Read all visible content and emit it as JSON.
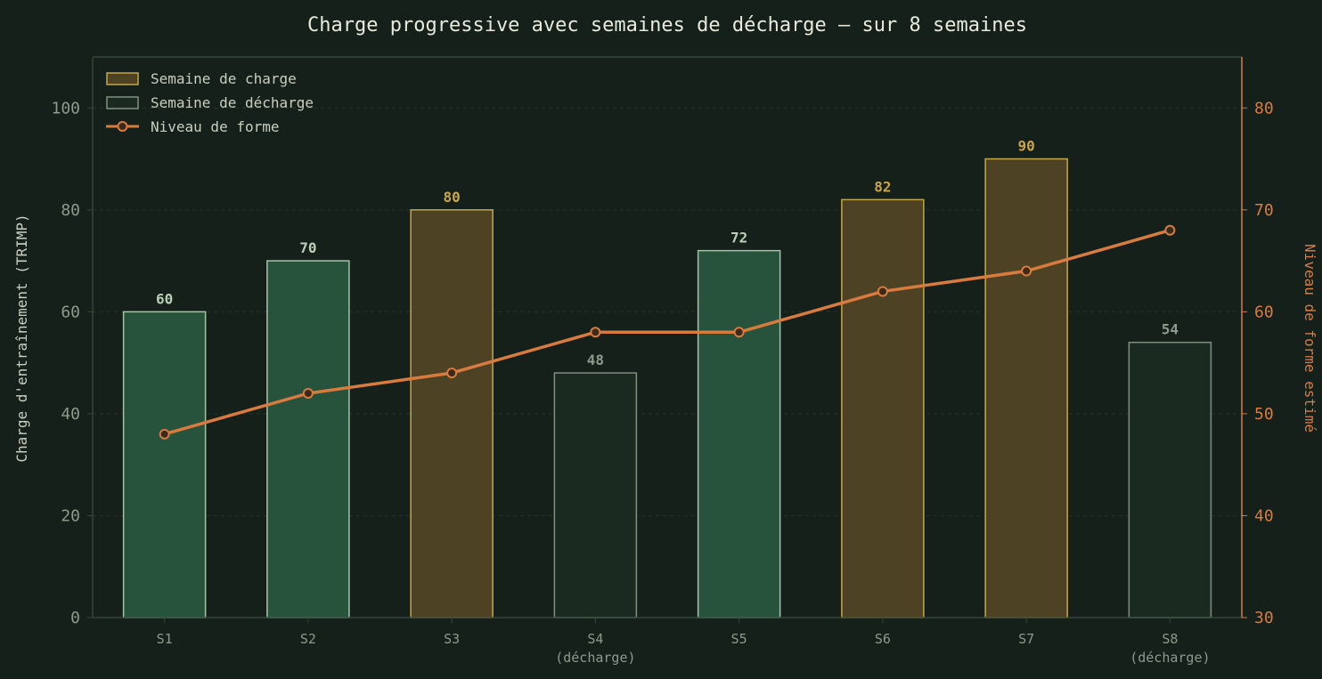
{
  "chart_data": {
    "type": "bar",
    "title": "Charge progressive avec semaines de décharge — sur 8 semaines",
    "ylabel": "Charge d'entraînement (TRIMP)",
    "ylabel_right": "Niveau de forme estimé",
    "ylim": [
      0,
      110
    ],
    "ylim_right": [
      30,
      85
    ],
    "yticks": [
      0,
      20,
      40,
      60,
      80,
      100
    ],
    "yticks_right": [
      30,
      40,
      50,
      60,
      70,
      80
    ],
    "legend_position": "top-left",
    "grid": true,
    "categories": [
      {
        "label": "S1",
        "sublabel": ""
      },
      {
        "label": "S2",
        "sublabel": ""
      },
      {
        "label": "S3",
        "sublabel": ""
      },
      {
        "label": "S4",
        "sublabel": "(décharge)"
      },
      {
        "label": "S5",
        "sublabel": ""
      },
      {
        "label": "S6",
        "sublabel": ""
      },
      {
        "label": "S7",
        "sublabel": ""
      },
      {
        "label": "S8",
        "sublabel": "(décharge)"
      }
    ],
    "bars": {
      "values": [
        60,
        70,
        80,
        48,
        72,
        82,
        90,
        54
      ],
      "kinds": [
        "base",
        "base",
        "charge",
        "decharge",
        "base",
        "charge",
        "charge",
        "decharge"
      ]
    },
    "line": {
      "name": "Niveau de forme",
      "values": [
        48,
        52,
        54,
        58,
        58,
        62,
        64,
        68
      ]
    },
    "legend": [
      {
        "label": "Semaine de charge",
        "kind": "charge"
      },
      {
        "label": "Semaine de décharge",
        "kind": "decharge"
      },
      {
        "label": "Niveau de forme",
        "kind": "line"
      }
    ],
    "colors": {
      "background": "#142019",
      "base_fill": "#27523b",
      "base_stroke": "#a7c4a9",
      "base_label": "#b9cfb7",
      "charge_fill": "#4d4324",
      "charge_stroke": "#c4a64c",
      "charge_label": "#c9a54a",
      "decharge_fill": "#1a2a21",
      "decharge_stroke": "#7f8f80",
      "decharge_label": "#8e9a8c",
      "line": "#d97b3f",
      "marker_fill": "#3a2a1c",
      "axis": "#34463a",
      "grid": "#26342b"
    }
  }
}
